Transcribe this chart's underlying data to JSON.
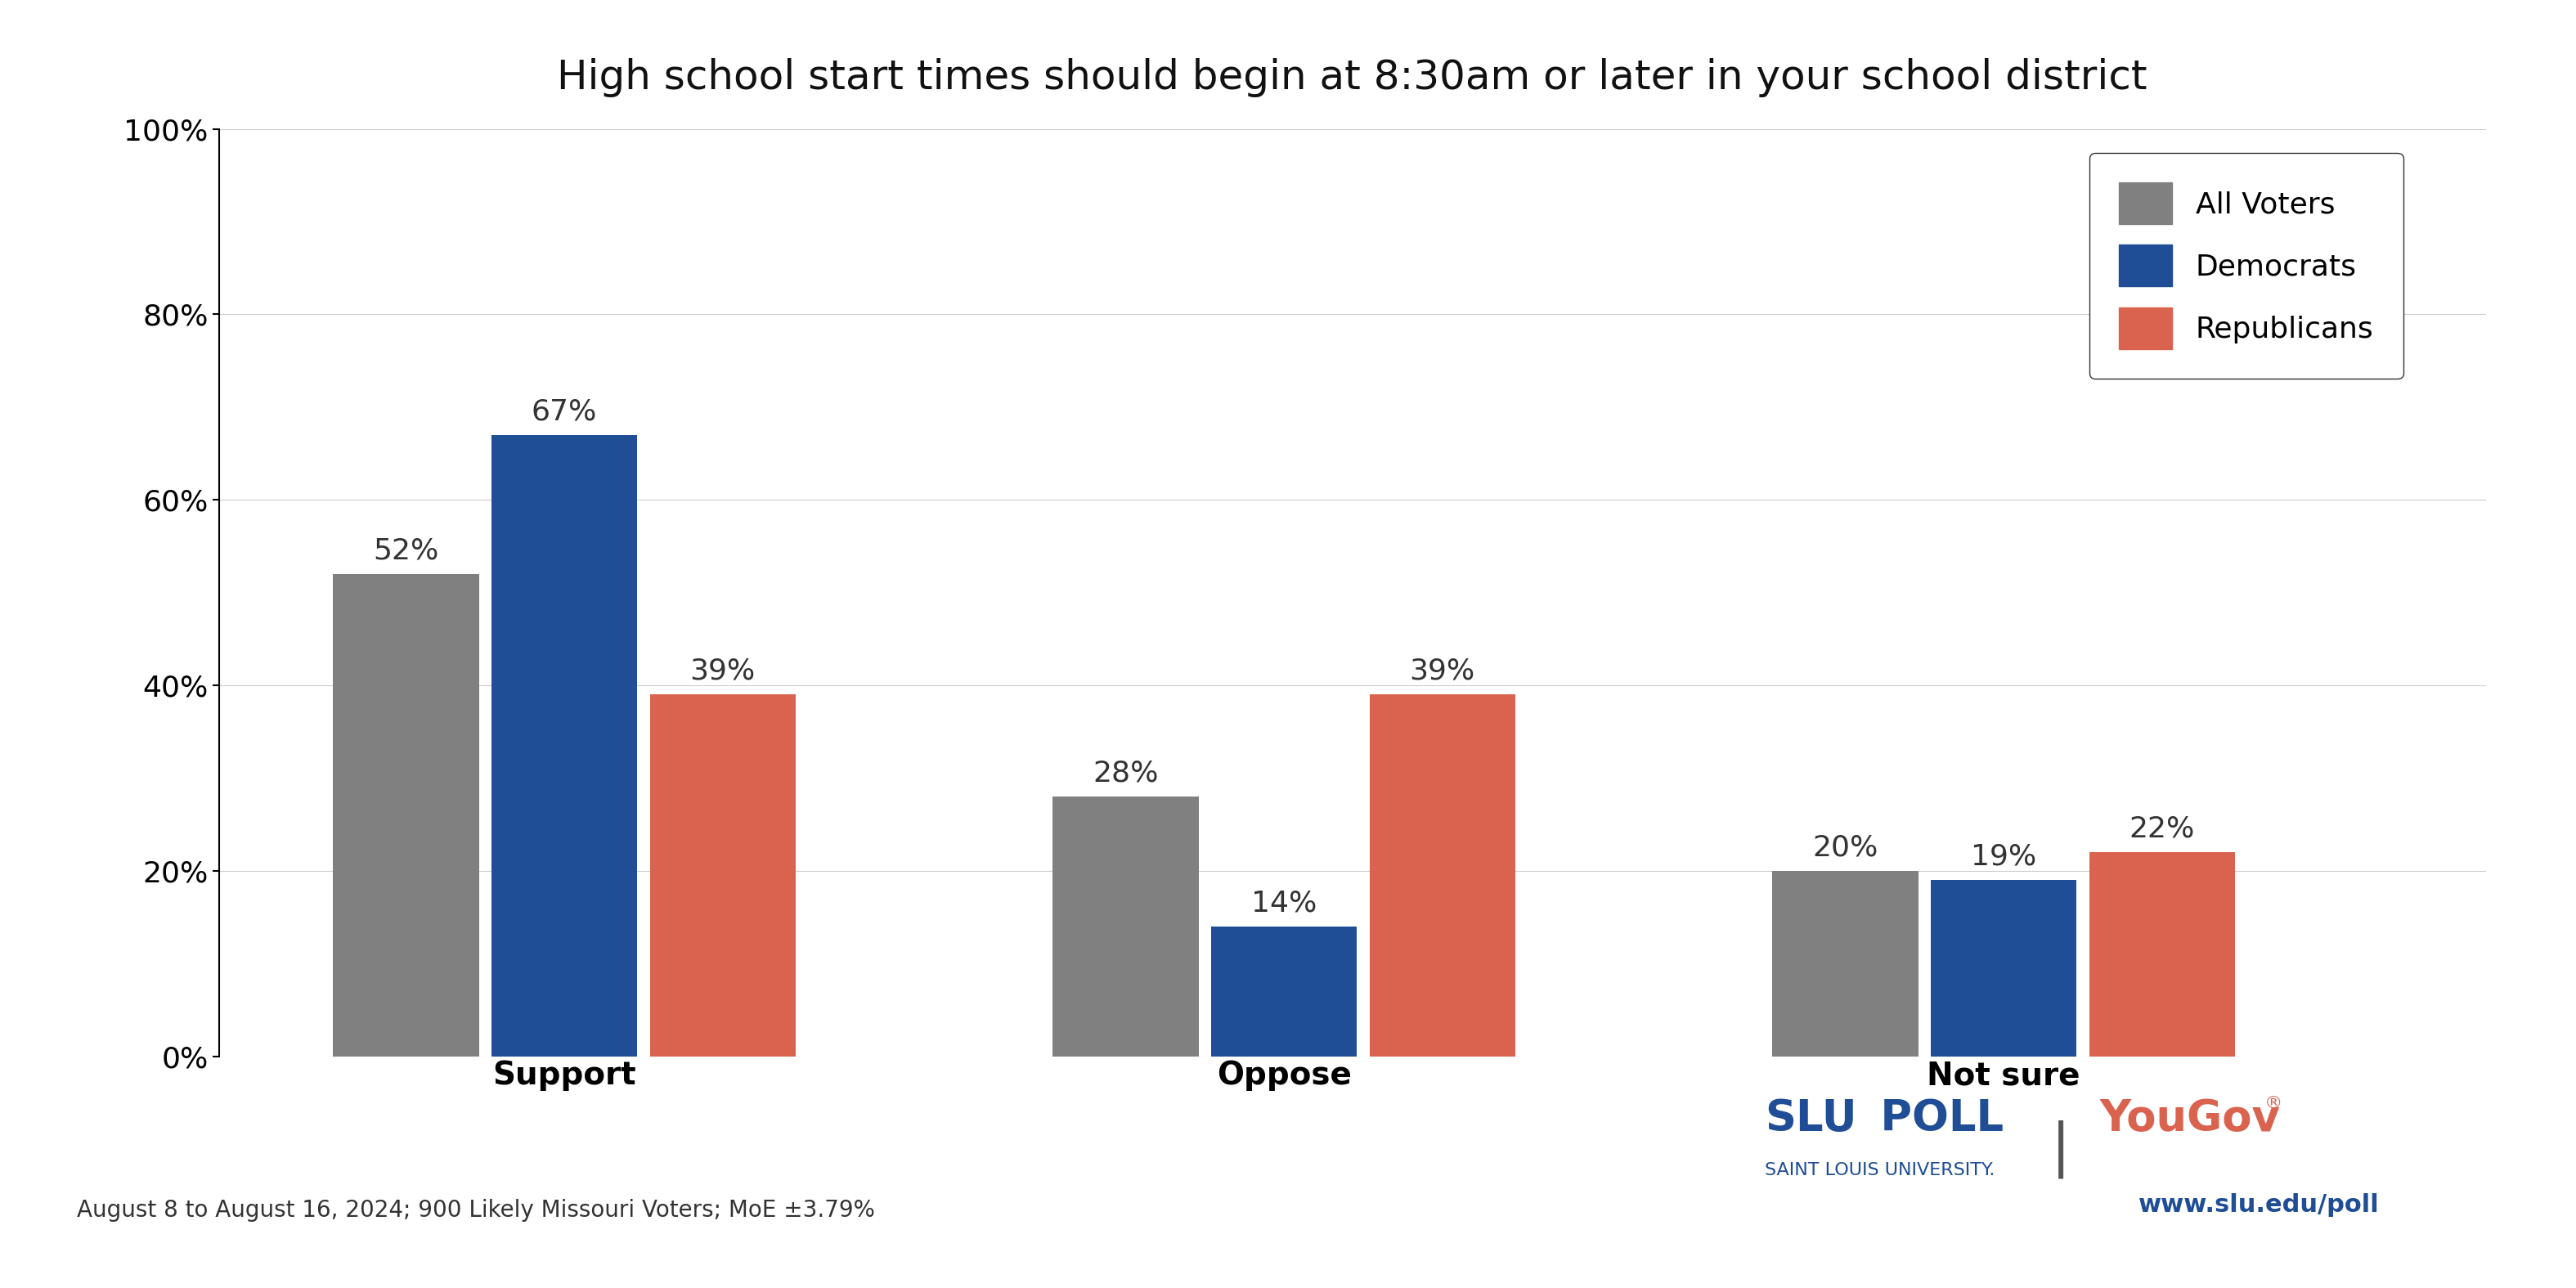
{
  "title": "High school start times should begin at 8:30am or later in your school district",
  "categories": [
    "Support",
    "Oppose",
    "Not sure"
  ],
  "series": {
    "All Voters": [
      52,
      28,
      20
    ],
    "Democrats": [
      67,
      14,
      19
    ],
    "Republicans": [
      39,
      39,
      22
    ]
  },
  "colors": {
    "All Voters": "#808080",
    "Democrats": "#1f4e96",
    "Republicans": "#d9634e"
  },
  "ylim": [
    0,
    100
  ],
  "yticks": [
    0,
    20,
    40,
    60,
    80,
    100
  ],
  "ytick_labels": [
    "0%",
    "20%",
    "40%",
    "60%",
    "80%",
    "100%"
  ],
  "bar_width": 0.22,
  "footnote": "August 8 to August 16, 2024; 900 Likely Missouri Voters; MoE ±3.79%",
  "slu_sub": "SAINT LOUIS UNIVERSITY.",
  "website": "www.slu.edu/poll",
  "slu_color": "#1f4e96",
  "yougov_color": "#d9634e",
  "title_fontsize": 36,
  "label_fontsize": 28,
  "tick_fontsize": 26,
  "legend_fontsize": 26,
  "annot_fontsize": 26,
  "footnote_fontsize": 20,
  "background_color": "#ffffff",
  "group_centers": [
    0.33,
    1.33,
    2.33
  ],
  "xlim_left": -0.15,
  "xlim_right": 3.0
}
